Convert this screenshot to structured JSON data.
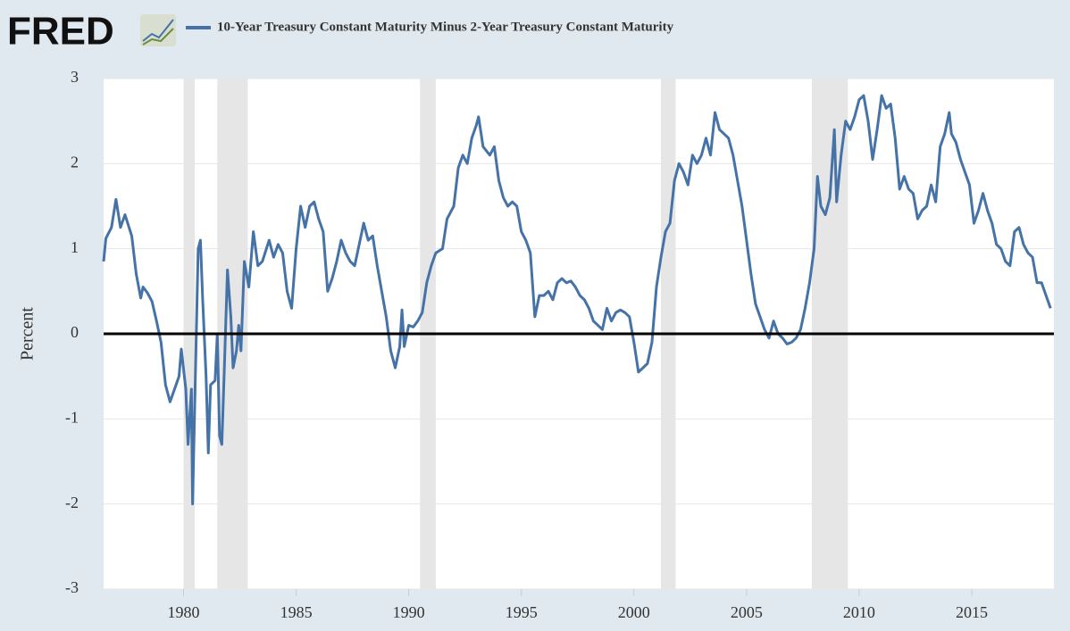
{
  "brand": "FRED",
  "chart_data": {
    "type": "line",
    "ylabel": "Percent",
    "x": [
      1976.45,
      1976.55,
      1976.8,
      1977.0,
      1977.2,
      1977.4,
      1977.7,
      1977.9,
      1978.1,
      1978.2,
      1978.4,
      1978.6,
      1978.8,
      1979.0,
      1979.2,
      1979.4,
      1979.6,
      1979.8,
      1979.9,
      1980.1,
      1980.2,
      1980.35,
      1980.4,
      1980.55,
      1980.65,
      1980.75,
      1980.85,
      1981.0,
      1981.1,
      1981.2,
      1981.4,
      1981.5,
      1981.6,
      1981.7,
      1981.8,
      1981.95,
      1982.1,
      1982.2,
      1982.35,
      1982.45,
      1982.55,
      1982.7,
      1982.9,
      1983.1,
      1983.3,
      1983.5,
      1983.8,
      1984.0,
      1984.2,
      1984.4,
      1984.6,
      1984.8,
      1985.0,
      1985.2,
      1985.4,
      1985.6,
      1985.8,
      1986.0,
      1986.2,
      1986.4,
      1986.6,
      1986.8,
      1987.0,
      1987.2,
      1987.4,
      1987.6,
      1987.8,
      1988.0,
      1988.2,
      1988.4,
      1988.6,
      1988.8,
      1989.0,
      1989.2,
      1989.4,
      1989.6,
      1989.7,
      1989.8,
      1990.0,
      1990.2,
      1990.4,
      1990.6,
      1990.8,
      1991.0,
      1991.2,
      1991.5,
      1991.7,
      1992.0,
      1992.2,
      1992.4,
      1992.6,
      1992.8,
      1993.0,
      1993.1,
      1993.3,
      1993.6,
      1993.8,
      1994.0,
      1994.2,
      1994.4,
      1994.6,
      1994.8,
      1995.0,
      1995.2,
      1995.4,
      1995.6,
      1995.8,
      1996.0,
      1996.2,
      1996.4,
      1996.6,
      1996.8,
      1997.0,
      1997.2,
      1997.4,
      1997.6,
      1997.8,
      1998.0,
      1998.2,
      1998.4,
      1998.6,
      1998.8,
      1999.0,
      1999.2,
      1999.4,
      1999.6,
      1999.8,
      2000.0,
      2000.2,
      2000.4,
      2000.6,
      2000.8,
      2001.0,
      2001.2,
      2001.4,
      2001.6,
      2001.8,
      2002.0,
      2002.2,
      2002.4,
      2002.6,
      2002.8,
      2003.0,
      2003.2,
      2003.4,
      2003.6,
      2003.8,
      2004.0,
      2004.2,
      2004.4,
      2004.6,
      2004.8,
      2005.0,
      2005.2,
      2005.4,
      2005.6,
      2005.8,
      2006.0,
      2006.2,
      2006.4,
      2006.6,
      2006.8,
      2007.0,
      2007.2,
      2007.4,
      2007.6,
      2007.8,
      2008.0,
      2008.15,
      2008.3,
      2008.5,
      2008.7,
      2008.9,
      2009.0,
      2009.2,
      2009.4,
      2009.6,
      2009.8,
      2010.0,
      2010.2,
      2010.4,
      2010.6,
      2010.8,
      2011.0,
      2011.2,
      2011.4,
      2011.6,
      2011.8,
      2012.0,
      2012.2,
      2012.4,
      2012.6,
      2012.8,
      2013.0,
      2013.2,
      2013.4,
      2013.6,
      2013.8,
      2014.0,
      2014.1,
      2014.3,
      2014.5,
      2014.7,
      2014.9,
      2015.1,
      2015.3,
      2015.5,
      2015.7,
      2015.9,
      2016.1,
      2016.3,
      2016.5,
      2016.7,
      2016.9,
      2017.1,
      2017.3,
      2017.5,
      2017.7,
      2017.9,
      2018.1,
      2018.3,
      2018.5
    ],
    "series": [
      {
        "name": "10-Year Treasury Constant Maturity Minus 2-Year Treasury Constant Maturity",
        "color": "#4572a7",
        "values": [
          0.85,
          1.12,
          1.25,
          1.58,
          1.25,
          1.4,
          1.15,
          0.7,
          0.42,
          0.55,
          0.48,
          0.38,
          0.15,
          -0.1,
          -0.6,
          -0.8,
          -0.65,
          -0.5,
          -0.18,
          -0.65,
          -1.3,
          -0.65,
          -2.0,
          -0.2,
          1.0,
          1.1,
          0.4,
          -0.5,
          -1.4,
          -0.6,
          -0.55,
          0.0,
          -1.2,
          -1.3,
          -0.5,
          0.75,
          0.2,
          -0.4,
          -0.2,
          0.1,
          -0.2,
          0.85,
          0.55,
          1.2,
          0.8,
          0.85,
          1.1,
          0.9,
          1.05,
          0.95,
          0.5,
          0.3,
          1.0,
          1.5,
          1.25,
          1.5,
          1.55,
          1.35,
          1.2,
          0.5,
          0.65,
          0.85,
          1.1,
          0.95,
          0.85,
          0.8,
          1.05,
          1.3,
          1.1,
          1.15,
          0.8,
          0.5,
          0.2,
          -0.2,
          -0.4,
          -0.15,
          0.28,
          -0.15,
          0.1,
          0.08,
          0.15,
          0.25,
          0.6,
          0.8,
          0.95,
          1.0,
          1.35,
          1.5,
          1.95,
          2.1,
          2.0,
          2.3,
          2.45,
          2.55,
          2.2,
          2.1,
          2.2,
          1.8,
          1.6,
          1.5,
          1.55,
          1.5,
          1.2,
          1.1,
          0.95,
          0.2,
          0.45,
          0.45,
          0.5,
          0.4,
          0.6,
          0.65,
          0.6,
          0.62,
          0.55,
          0.45,
          0.4,
          0.3,
          0.15,
          0.1,
          0.05,
          0.3,
          0.15,
          0.25,
          0.28,
          0.25,
          0.2,
          -0.1,
          -0.45,
          -0.4,
          -0.35,
          -0.1,
          0.55,
          0.9,
          1.2,
          1.3,
          1.8,
          2.0,
          1.9,
          1.75,
          2.1,
          2.0,
          2.1,
          2.3,
          2.1,
          2.6,
          2.4,
          2.35,
          2.3,
          2.1,
          1.8,
          1.5,
          1.1,
          0.7,
          0.35,
          0.2,
          0.05,
          -0.05,
          0.15,
          0.0,
          -0.05,
          -0.12,
          -0.1,
          -0.05,
          0.05,
          0.3,
          0.6,
          1.0,
          1.85,
          1.5,
          1.4,
          1.6,
          2.4,
          1.55,
          2.1,
          2.5,
          2.4,
          2.55,
          2.75,
          2.8,
          2.5,
          2.05,
          2.4,
          2.8,
          2.65,
          2.7,
          2.3,
          1.7,
          1.85,
          1.7,
          1.65,
          1.35,
          1.45,
          1.5,
          1.75,
          1.55,
          2.2,
          2.35,
          2.6,
          2.35,
          2.25,
          2.05,
          1.9,
          1.75,
          1.3,
          1.45,
          1.65,
          1.45,
          1.3,
          1.05,
          1.0,
          0.85,
          0.8,
          1.2,
          1.25,
          1.05,
          0.95,
          0.9,
          0.6,
          0.6,
          0.45,
          0.3
        ]
      }
    ],
    "recessions": [
      [
        1980.0,
        1980.5
      ],
      [
        1981.5,
        1982.85
      ],
      [
        1990.5,
        1991.2
      ],
      [
        2001.2,
        2001.85
      ],
      [
        2007.9,
        2009.5
      ]
    ],
    "xlim": [
      1976.45,
      2018.65
    ],
    "xticks": [
      1980,
      1985,
      1990,
      1995,
      2000,
      2005,
      2010,
      2015
    ],
    "ylim": [
      -3,
      3
    ],
    "yticks": [
      -3,
      -2,
      -1,
      0,
      1,
      2,
      3
    ],
    "grid": true
  }
}
